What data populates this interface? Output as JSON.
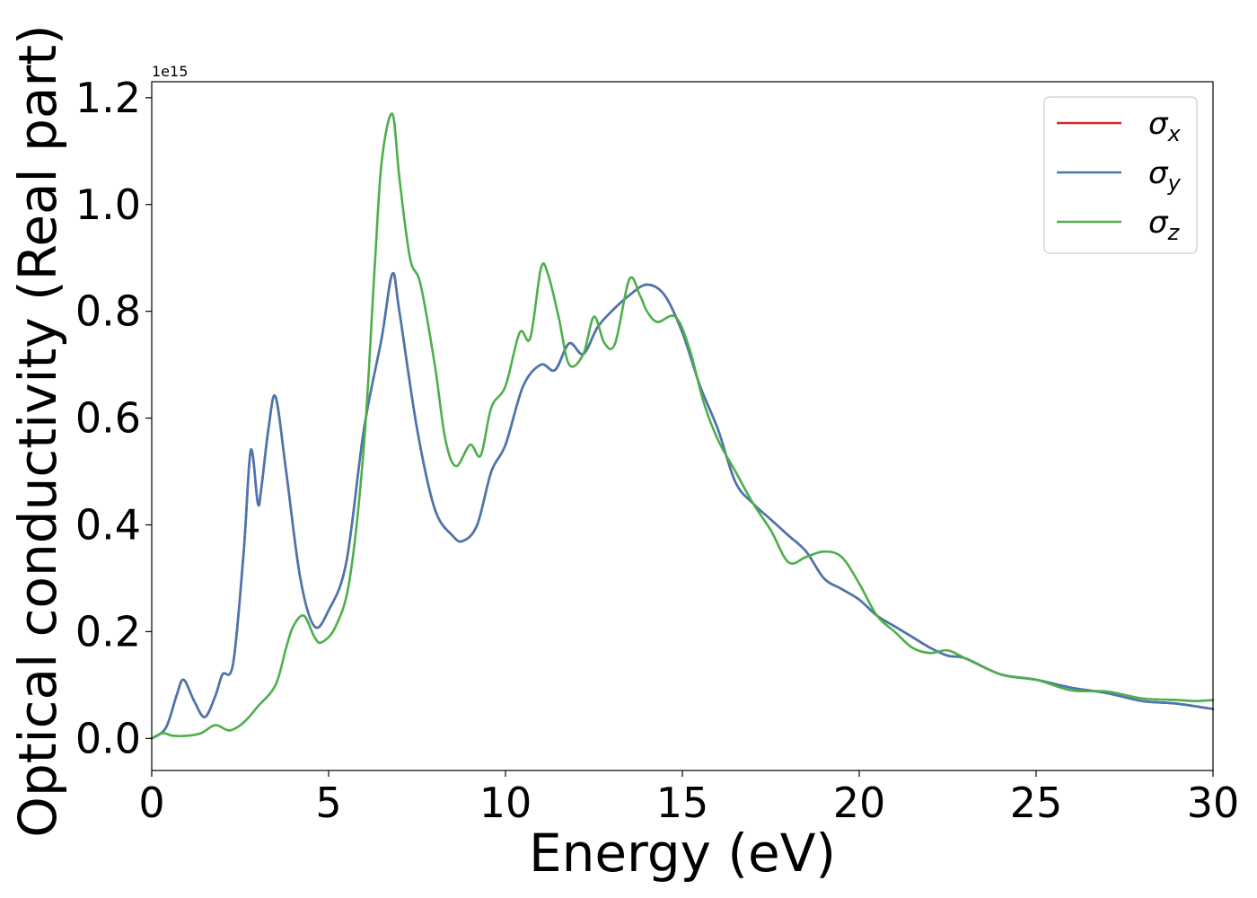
{
  "chart_data": {
    "type": "line",
    "xlabel": "Energy (eV)",
    "ylabel": "Optical conductivity (Real part)",
    "y_offset_label": "1e15",
    "y_multiplier": 1000000000000000.0,
    "xlim": [
      0,
      30
    ],
    "ylim": [
      -0.06,
      1.23
    ],
    "x_ticks": [
      0,
      5,
      10,
      15,
      20,
      25,
      30
    ],
    "x_tick_labels": [
      "0",
      "5",
      "10",
      "15",
      "20",
      "25",
      "30"
    ],
    "y_ticks": [
      0.0,
      0.2,
      0.4,
      0.6,
      0.8,
      1.0,
      1.2
    ],
    "y_tick_labels": [
      "0.0",
      "0.2",
      "0.4",
      "0.6",
      "0.8",
      "1.0",
      "1.2"
    ],
    "grid": false,
    "legend_position": "top-right",
    "legend": [
      {
        "symbol": "σ",
        "subscript": "x"
      },
      {
        "symbol": "σ",
        "subscript": "y"
      },
      {
        "symbol": "σ",
        "subscript": "z"
      }
    ],
    "series": [
      {
        "name": "σx",
        "color": "#d62728",
        "x": [
          0,
          0.4,
          0.7,
          0.9,
          1.2,
          1.5,
          1.8,
          2.0,
          2.3,
          2.6,
          2.8,
          3.0,
          3.1,
          3.3,
          3.5,
          3.8,
          4.2,
          4.6,
          5.0,
          5.5,
          6.0,
          6.5,
          6.8,
          7.0,
          7.5,
          8.0,
          8.5,
          8.8,
          9.2,
          9.6,
          10.0,
          10.5,
          11.0,
          11.4,
          11.8,
          12.2,
          12.6,
          13.0,
          13.5,
          14.0,
          14.5,
          15.0,
          15.5,
          16.0,
          16.5,
          17.0,
          17.5,
          18.0,
          18.5,
          19.0,
          19.5,
          20.0,
          20.5,
          21.0,
          21.5,
          22.0,
          22.5,
          23.0,
          24.0,
          25.0,
          26.0,
          27.0,
          28.0,
          29.0,
          30.0
        ],
        "y": [
          0.0,
          0.02,
          0.08,
          0.11,
          0.07,
          0.04,
          0.08,
          0.12,
          0.14,
          0.35,
          0.54,
          0.44,
          0.47,
          0.58,
          0.64,
          0.5,
          0.3,
          0.21,
          0.24,
          0.33,
          0.58,
          0.75,
          0.87,
          0.8,
          0.58,
          0.43,
          0.38,
          0.37,
          0.4,
          0.5,
          0.55,
          0.66,
          0.7,
          0.69,
          0.74,
          0.72,
          0.77,
          0.8,
          0.83,
          0.85,
          0.83,
          0.76,
          0.66,
          0.58,
          0.48,
          0.44,
          0.41,
          0.38,
          0.35,
          0.3,
          0.28,
          0.26,
          0.23,
          0.21,
          0.19,
          0.17,
          0.155,
          0.15,
          0.12,
          0.11,
          0.095,
          0.085,
          0.07,
          0.065,
          0.055
        ]
      },
      {
        "name": "σy",
        "color": "#4877b0",
        "x": [
          0,
          0.4,
          0.7,
          0.9,
          1.2,
          1.5,
          1.8,
          2.0,
          2.3,
          2.6,
          2.8,
          3.0,
          3.1,
          3.3,
          3.5,
          3.8,
          4.2,
          4.6,
          5.0,
          5.5,
          6.0,
          6.5,
          6.8,
          7.0,
          7.5,
          8.0,
          8.5,
          8.8,
          9.2,
          9.6,
          10.0,
          10.5,
          11.0,
          11.4,
          11.8,
          12.2,
          12.6,
          13.0,
          13.5,
          14.0,
          14.5,
          15.0,
          15.5,
          16.0,
          16.5,
          17.0,
          17.5,
          18.0,
          18.5,
          19.0,
          19.5,
          20.0,
          20.5,
          21.0,
          21.5,
          22.0,
          22.5,
          23.0,
          24.0,
          25.0,
          26.0,
          27.0,
          28.0,
          29.0,
          30.0
        ],
        "y": [
          0.0,
          0.02,
          0.08,
          0.11,
          0.07,
          0.04,
          0.08,
          0.12,
          0.14,
          0.35,
          0.54,
          0.44,
          0.47,
          0.58,
          0.64,
          0.5,
          0.3,
          0.21,
          0.24,
          0.33,
          0.58,
          0.75,
          0.87,
          0.8,
          0.58,
          0.43,
          0.38,
          0.37,
          0.4,
          0.5,
          0.55,
          0.66,
          0.7,
          0.69,
          0.74,
          0.72,
          0.77,
          0.8,
          0.83,
          0.85,
          0.83,
          0.76,
          0.66,
          0.58,
          0.48,
          0.44,
          0.41,
          0.38,
          0.35,
          0.3,
          0.28,
          0.26,
          0.23,
          0.21,
          0.19,
          0.17,
          0.155,
          0.15,
          0.12,
          0.11,
          0.095,
          0.085,
          0.07,
          0.065,
          0.055
        ]
      },
      {
        "name": "σz",
        "color": "#4daf4a",
        "x": [
          0,
          0.3,
          0.6,
          1.0,
          1.4,
          1.8,
          2.2,
          2.6,
          3.0,
          3.5,
          3.8,
          4.0,
          4.3,
          4.6,
          4.8,
          5.2,
          5.6,
          6.0,
          6.3,
          6.5,
          6.8,
          7.0,
          7.3,
          7.6,
          8.0,
          8.3,
          8.6,
          9.0,
          9.3,
          9.6,
          10.0,
          10.4,
          10.7,
          11.0,
          11.2,
          11.5,
          11.8,
          12.2,
          12.5,
          12.8,
          13.1,
          13.5,
          13.8,
          14.0,
          14.3,
          14.8,
          15.2,
          15.6,
          16.0,
          16.5,
          17.0,
          17.5,
          18.0,
          18.5,
          19.0,
          19.5,
          20.0,
          20.5,
          21.0,
          21.5,
          22.0,
          22.5,
          23.0,
          24.0,
          25.0,
          26.0,
          27.0,
          28.0,
          29.0,
          29.5,
          30.0
        ],
        "y": [
          0.0,
          0.01,
          0.005,
          0.005,
          0.01,
          0.025,
          0.015,
          0.03,
          0.06,
          0.1,
          0.17,
          0.21,
          0.23,
          0.19,
          0.18,
          0.21,
          0.3,
          0.55,
          0.88,
          1.08,
          1.17,
          1.05,
          0.9,
          0.85,
          0.7,
          0.56,
          0.51,
          0.55,
          0.53,
          0.62,
          0.66,
          0.76,
          0.75,
          0.88,
          0.87,
          0.79,
          0.7,
          0.72,
          0.79,
          0.74,
          0.74,
          0.86,
          0.83,
          0.8,
          0.78,
          0.79,
          0.73,
          0.63,
          0.56,
          0.5,
          0.44,
          0.39,
          0.33,
          0.34,
          0.35,
          0.34,
          0.29,
          0.23,
          0.2,
          0.17,
          0.16,
          0.165,
          0.15,
          0.12,
          0.11,
          0.09,
          0.088,
          0.075,
          0.072,
          0.07,
          0.072
        ]
      }
    ]
  }
}
